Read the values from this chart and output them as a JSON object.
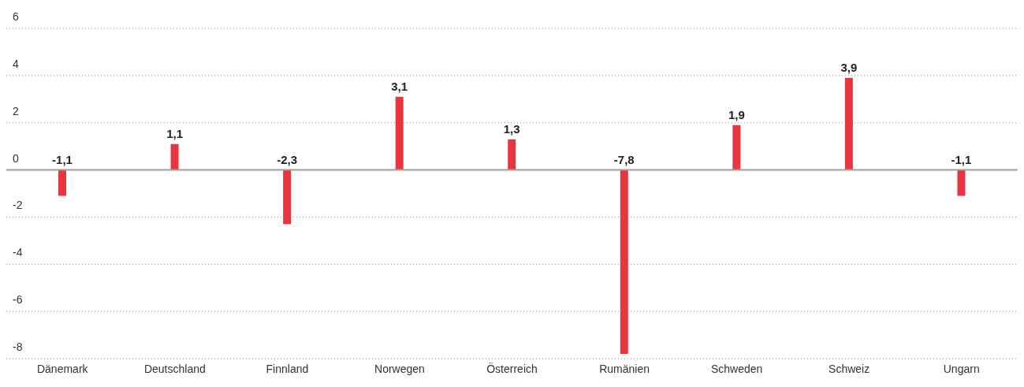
{
  "chart_data": {
    "type": "bar",
    "categories": [
      "Dänemark",
      "Deutschland",
      "Finnland",
      "Norwegen",
      "Österreich",
      "Rumänien",
      "Schweden",
      "Schweiz",
      "Ungarn"
    ],
    "values": [
      -1.1,
      1.1,
      -2.3,
      3.1,
      1.3,
      -7.8,
      1.9,
      3.9,
      -1.1
    ],
    "value_labels": [
      "-1,1",
      "1,1",
      "-2,3",
      "3,1",
      "1,3",
      "-7,8",
      "1,9",
      "3,9",
      "-1,1"
    ],
    "color": "#e8353f",
    "ylim": [
      -8,
      6
    ],
    "yticks": [
      -8,
      -6,
      -4,
      -2,
      0,
      2,
      4,
      6
    ],
    "grid": "y",
    "ref_lines": [
      {
        "axis": "y",
        "value": 0,
        "label": null,
        "color": "#a39d97"
      }
    ]
  }
}
